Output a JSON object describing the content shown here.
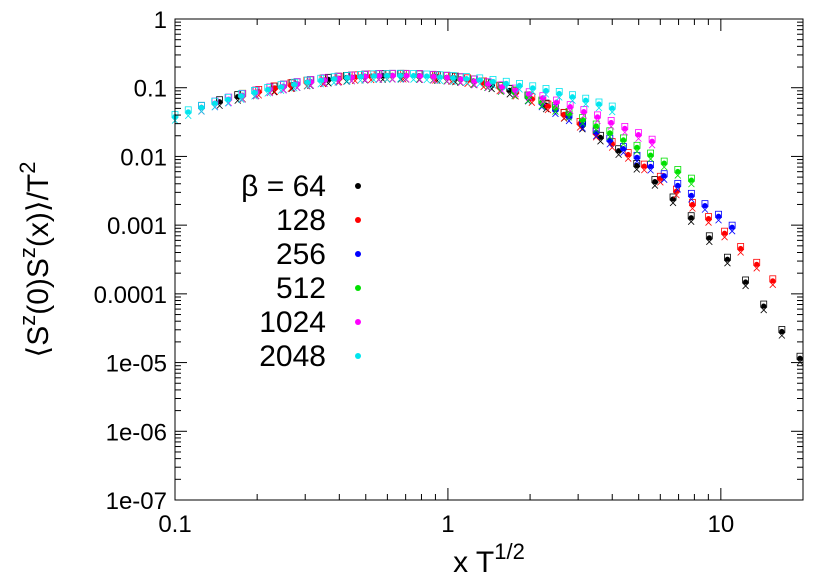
{
  "chart_data": {
    "type": "scatter",
    "title": "",
    "xlabel": "x T",
    "xlabel_sup": "1/2",
    "ylabel": "⟨S",
    "ylabel_parts": [
      "⟨S",
      "z",
      "(0)S",
      "z",
      "(x)⟩/T",
      "2"
    ],
    "x_scale": "log",
    "y_scale": "log",
    "xlim": [
      0.1,
      20
    ],
    "ylim": [
      1e-07,
      1
    ],
    "x_ticks": [
      {
        "value": 0.1,
        "label": "0.1"
      },
      {
        "value": 1,
        "label": "1"
      },
      {
        "value": 10,
        "label": "10"
      }
    ],
    "y_ticks": [
      {
        "value": 1,
        "label": "1"
      },
      {
        "value": 0.1,
        "label": "0.1"
      },
      {
        "value": 0.01,
        "label": "0.01"
      },
      {
        "value": 0.001,
        "label": "0.001"
      },
      {
        "value": 0.0001,
        "label": "0.0001"
      },
      {
        "value": 1e-05,
        "label": "1e-05"
      },
      {
        "value": 1e-06,
        "label": "1e-06"
      },
      {
        "value": 1e-07,
        "label": "1e-07"
      }
    ],
    "grid": false,
    "legend_position": "left-middle",
    "legend_header": "β = ",
    "series": [
      {
        "name": "64",
        "color": "#000000",
        "range": [
          0.125,
          19.5
        ]
      },
      {
        "name": "128",
        "color": "#ff0000",
        "range": [
          0.177,
          15.5
        ]
      },
      {
        "name": "256",
        "color": "#0000ff",
        "range": [
          0.25,
          11.0
        ]
      },
      {
        "name": "512",
        "color": "#00e000",
        "range": [
          0.177,
          7.8
        ]
      },
      {
        "name": "1024",
        "color": "#ff00ff",
        "range": [
          0.125,
          5.6
        ]
      },
      {
        "name": "2048",
        "color": "#00e5ee",
        "range": [
          0.1,
          4.0
        ]
      }
    ]
  }
}
